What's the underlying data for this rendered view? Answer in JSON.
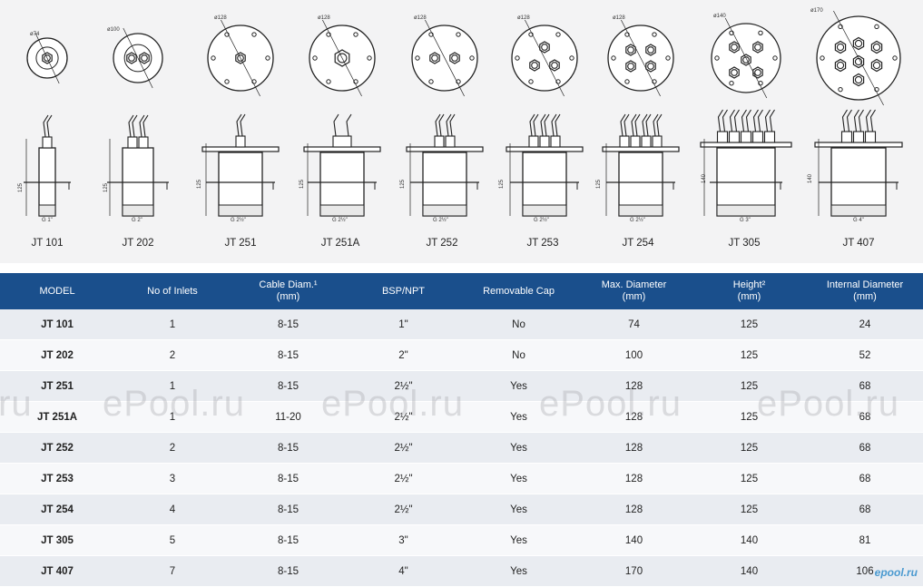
{
  "drawings": {
    "models": [
      {
        "name": "JT 101",
        "diameter": "ø74",
        "thread": "G 1\"",
        "height": "125"
      },
      {
        "name": "JT 202",
        "diameter": "ø100",
        "thread": "G 2\"",
        "height": "125"
      },
      {
        "name": "JT 251",
        "diameter": "ø128",
        "thread": "G 2½\"",
        "height": "125"
      },
      {
        "name": "JT 251A",
        "diameter": "ø128",
        "thread": "G 2½\"",
        "height": "125"
      },
      {
        "name": "JT 252",
        "diameter": "ø128",
        "thread": "G 2½\"",
        "height": "125"
      },
      {
        "name": "JT 253",
        "diameter": "ø128",
        "thread": "G 2½\"",
        "height": "125"
      },
      {
        "name": "JT 254",
        "diameter": "ø128",
        "thread": "G 2½\"",
        "height": "125"
      },
      {
        "name": "JT 305",
        "diameter": "ø140",
        "thread": "G 3\"",
        "height": "140"
      },
      {
        "name": "JT 407",
        "diameter": "ø170",
        "thread": "G 4\"",
        "height": "140"
      }
    ]
  },
  "table": {
    "headers": {
      "model": "MODEL",
      "inlets": "No of Inlets",
      "cable_1": "Cable Diam.¹",
      "cable_2": "(mm)",
      "bsp": "BSP/NPT",
      "cap": "Removable Cap",
      "maxd_1": "Max. Diameter",
      "maxd_2": "(mm)",
      "height_1": "Height²",
      "height_2": "(mm)",
      "intd_1": "Internal Diameter",
      "intd_2": "(mm)"
    },
    "rows": [
      {
        "model": "JT 101",
        "inlets": "1",
        "cable": "8-15",
        "bsp": "1\"",
        "cap": "No",
        "maxd": "74",
        "height": "125",
        "intd": "24"
      },
      {
        "model": "JT 202",
        "inlets": "2",
        "cable": "8-15",
        "bsp": "2\"",
        "cap": "No",
        "maxd": "100",
        "height": "125",
        "intd": "52"
      },
      {
        "model": "JT 251",
        "inlets": "1",
        "cable": "8-15",
        "bsp": "2½\"",
        "cap": "Yes",
        "maxd": "128",
        "height": "125",
        "intd": "68"
      },
      {
        "model": "JT 251A",
        "inlets": "1",
        "cable": "11-20",
        "bsp": "2½\"",
        "cap": "Yes",
        "maxd": "128",
        "height": "125",
        "intd": "68"
      },
      {
        "model": "JT 252",
        "inlets": "2",
        "cable": "8-15",
        "bsp": "2½\"",
        "cap": "Yes",
        "maxd": "128",
        "height": "125",
        "intd": "68"
      },
      {
        "model": "JT 253",
        "inlets": "3",
        "cable": "8-15",
        "bsp": "2½\"",
        "cap": "Yes",
        "maxd": "128",
        "height": "125",
        "intd": "68"
      },
      {
        "model": "JT 254",
        "inlets": "4",
        "cable": "8-15",
        "bsp": "2½\"",
        "cap": "Yes",
        "maxd": "128",
        "height": "125",
        "intd": "68"
      },
      {
        "model": "JT 305",
        "inlets": "5",
        "cable": "8-15",
        "bsp": "3\"",
        "cap": "Yes",
        "maxd": "140",
        "height": "140",
        "intd": "81"
      },
      {
        "model": "JT 407",
        "inlets": "7",
        "cable": "8-15",
        "bsp": "4\"",
        "cap": "Yes",
        "maxd": "170",
        "height": "140",
        "intd": "106"
      }
    ]
  },
  "watermark": {
    "text": "ePool.ru",
    "partial": ".ru",
    "corner": "epool.ru"
  },
  "colors": {
    "header_bg": "#1a4f8c",
    "row_odd": "#e9ecf1",
    "row_even": "#f7f8fa",
    "drawing_bg": "#f3f3f4"
  }
}
